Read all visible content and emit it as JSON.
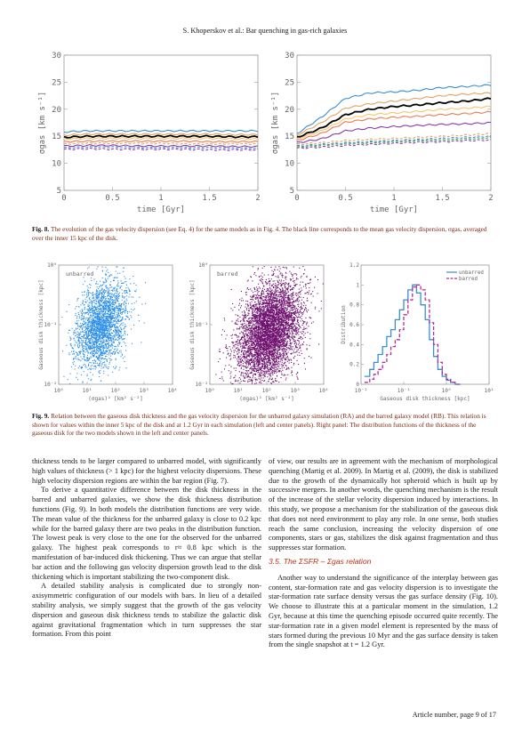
{
  "header": "S. Khoperskov et al.: Bar quenching in gas-rich galaxies",
  "fig8": {
    "caption_label": "Fig. 8.",
    "caption_text": "The evolution of the gas velocity dispersion (see Eq. 4) for the same models as in Fig. 4. The black line corresponds to the mean gas velocity dispersion, σgas, averaged over the inner 15 kpc of the disk.",
    "xlabel": "time [Gyr]",
    "ylabel": "σgas [km s⁻¹]",
    "xticks": [
      "0",
      "0.5",
      "1",
      "1.5",
      "2"
    ],
    "yticks": [
      "5",
      "10",
      "15",
      "20",
      "25",
      "30"
    ]
  },
  "fig9": {
    "caption_label": "Fig. 9.",
    "caption_text": "Relation between the gaseous disk thickness and the gas velocity dispersion for the unbarred galaxy simulation (RA) and the barred galaxy model (RB). This relation is shown for values within the inner 5 kpc of the disk and at 1.2 Gyr in each simulation (left and center panels). Right panel: The distribution functions of the thickness of the gaseous disk for the two models shown in the left and center panels.",
    "panel_left_label": "unbarred",
    "panel_center_label": "barred",
    "scatter_xlabel": "(σgas)² [km² s⁻²]",
    "scatter_ylabel": "Gaseous disk thickness [kpc]",
    "scatter_xticks": [
      "10⁰",
      "10¹",
      "10²",
      "10³",
      "10⁴"
    ],
    "scatter_yticks": [
      "10⁻²",
      "10⁻¹",
      "10⁰"
    ],
    "hist_xlabel": "Gaseous disk thickness [kpc]",
    "hist_ylabel": "Distribution",
    "hist_xticks": [
      "10⁻²",
      "10⁻¹",
      "10⁰",
      "10¹"
    ],
    "hist_yticks": [
      "0",
      "0.2",
      "0.4",
      "0.6",
      "0.8",
      "1",
      "1.2"
    ],
    "legend": [
      "unbarred",
      "barred"
    ]
  },
  "chart_data": [
    {
      "type": "line",
      "xlabel": "time [Gyr]",
      "ylabel": "σgas [km s⁻¹]",
      "xlim": [
        0,
        2
      ],
      "ylim": [
        5,
        30
      ],
      "x": [
        0,
        0.25,
        0.5,
        0.75,
        1,
        1.25,
        1.5,
        1.75,
        2
      ],
      "series": [
        {
          "color": "#3a8fd0",
          "values": [
            15.8,
            16.0,
            16.0,
            16.0,
            16.0,
            16.0,
            16.0,
            16.0,
            16.0
          ]
        },
        {
          "color": "#e8a05a",
          "values": [
            15.2,
            15.4,
            15.4,
            15.4,
            15.4,
            15.4,
            15.4,
            15.3,
            15.3
          ]
        },
        {
          "color": "#000000",
          "values": [
            14.8,
            15.0,
            15.0,
            15.0,
            15.0,
            15.0,
            15.0,
            14.9,
            14.9
          ]
        },
        {
          "color": "#f5c76a",
          "values": [
            14.5,
            14.6,
            14.6,
            14.6,
            14.6,
            14.6,
            14.6,
            14.5,
            14.5
          ]
        },
        {
          "color": "#e87a55",
          "values": [
            14.0,
            14.1,
            14.1,
            14.1,
            14.1,
            14.1,
            14.0,
            14.0,
            14.0
          ]
        },
        {
          "color": "#e8a05a",
          "dash": true,
          "values": [
            13.6,
            13.7,
            13.7,
            13.7,
            13.7,
            13.6,
            13.6,
            13.6,
            13.6
          ]
        },
        {
          "color": "#8a3ab0",
          "values": [
            13.2,
            13.3,
            13.3,
            13.2,
            13.2,
            13.2,
            13.2,
            13.1,
            13.1
          ]
        },
        {
          "color": "#3a8fd0",
          "dash": true,
          "values": [
            12.9,
            13.0,
            13.0,
            12.9,
            12.9,
            12.9,
            12.9,
            12.8,
            12.8
          ]
        },
        {
          "color": "#8a3ab0",
          "dash": true,
          "values": [
            12.6,
            12.7,
            12.6,
            12.6,
            12.6,
            12.6,
            12.5,
            12.5,
            12.5
          ]
        }
      ]
    },
    {
      "type": "line",
      "xlabel": "time [Gyr]",
      "ylabel": "σgas [km s⁻¹]",
      "xlim": [
        0,
        2
      ],
      "ylim": [
        5,
        30
      ],
      "x": [
        0,
        0.25,
        0.5,
        0.75,
        1,
        1.25,
        1.5,
        1.75,
        2
      ],
      "series": [
        {
          "color": "#3a8fd0",
          "values": [
            15.5,
            18.5,
            22.0,
            23.0,
            23.2,
            23.5,
            24.0,
            24.2,
            24.5
          ]
        },
        {
          "color": "#e8a05a",
          "values": [
            15.2,
            17.5,
            20.2,
            21.0,
            21.5,
            22.0,
            22.5,
            22.8,
            23.0
          ]
        },
        {
          "color": "#000000",
          "values": [
            14.8,
            16.5,
            19.0,
            20.0,
            20.5,
            20.8,
            21.2,
            21.5,
            22.0
          ]
        },
        {
          "color": "#f5c76a",
          "values": [
            14.5,
            16.0,
            18.2,
            19.0,
            19.3,
            19.6,
            20.0,
            20.2,
            20.5
          ]
        },
        {
          "color": "#e87a55",
          "values": [
            14.2,
            15.5,
            17.6,
            18.2,
            18.5,
            18.7,
            19.0,
            19.2,
            19.5
          ]
        },
        {
          "color": "#8a3ab0",
          "values": [
            13.8,
            14.5,
            16.0,
            16.5,
            16.8,
            17.0,
            17.2,
            17.3,
            17.5
          ]
        },
        {
          "color": "#e8a05a",
          "dash": true,
          "values": [
            13.5,
            13.8,
            14.2,
            14.4,
            14.6,
            14.8,
            15.0,
            15.2,
            15.5
          ]
        },
        {
          "color": "#3a8fd0",
          "dash": true,
          "values": [
            13.2,
            13.5,
            13.8,
            14.0,
            14.2,
            14.4,
            14.6,
            14.8,
            15.0
          ]
        },
        {
          "color": "#4aa84a",
          "dash": true,
          "values": [
            13.0,
            13.3,
            13.6,
            13.8,
            14.0,
            14.2,
            14.3,
            14.5,
            14.7
          ]
        },
        {
          "color": "#8a3ab0",
          "dash": true,
          "values": [
            12.8,
            13.0,
            13.3,
            13.5,
            13.7,
            13.9,
            14.0,
            14.2,
            14.3
          ]
        }
      ]
    },
    {
      "type": "scatter",
      "xlabel": "(σgas)² [km² s⁻²]",
      "ylabel": "Gaseous disk thickness [kpc]",
      "x_scale": "log",
      "y_scale": "log",
      "xlim": [
        1,
        10000
      ],
      "ylim": [
        0.01,
        1
      ],
      "series": [
        {
          "name": "unbarred",
          "color": "#2a8ee8",
          "center": [
            30,
            0.1
          ],
          "spread": [
            0.45,
            0.35
          ]
        }
      ]
    },
    {
      "type": "scatter",
      "xlabel": "(σgas)² [km² s⁻²]",
      "ylabel": "Gaseous disk thickness [kpc]",
      "x_scale": "log",
      "y_scale": "log",
      "xlim": [
        1,
        10000
      ],
      "ylim": [
        0.01,
        1
      ],
      "series": [
        {
          "name": "barred",
          "color": "#6e0f6e",
          "center": [
            120,
            0.08
          ],
          "spread": [
            0.55,
            0.4
          ]
        }
      ]
    },
    {
      "type": "line",
      "xlabel": "Gaseous disk thickness [kpc]",
      "ylabel": "Distribution",
      "x_scale": "log",
      "xlim": [
        0.01,
        10
      ],
      "ylim": [
        0,
        1.2
      ],
      "x": [
        0.012,
        0.016,
        0.02,
        0.025,
        0.032,
        0.04,
        0.05,
        0.063,
        0.08,
        0.1,
        0.126,
        0.16,
        0.2,
        0.25,
        0.32,
        0.4,
        0.5,
        0.63,
        0.8,
        1.0,
        1.26,
        1.6
      ],
      "series": [
        {
          "name": "unbarred",
          "color": "#3a8fd0",
          "values": [
            0.08,
            0.15,
            0.22,
            0.3,
            0.38,
            0.48,
            0.55,
            0.65,
            0.75,
            0.85,
            0.95,
            1.0,
            0.92,
            0.8,
            0.65,
            0.45,
            0.28,
            0.15,
            0.08,
            0.04,
            0.02,
            0.0
          ]
        },
        {
          "name": "barred",
          "color": "#b0309a",
          "dash": true,
          "values": [
            0.02,
            0.05,
            0.1,
            0.15,
            0.22,
            0.3,
            0.38,
            0.45,
            0.55,
            0.7,
            0.85,
            0.98,
            1.0,
            0.95,
            0.85,
            0.62,
            0.4,
            0.22,
            0.1,
            0.05,
            0.02,
            0.0
          ]
        }
      ]
    }
  ],
  "body_left": [
    "thickness tends to be larger compared to unbarred model, with significantly high values of thickness (> 1 kpc) for the highest velocity dispersions. These high velocity dispersion regions are within the bar region (Fig. 7).",
    "To derive a quantitative difference between the disk thickness in the barred and unbarred galaxies, we show the disk thickness distribution functions (Fig. 9). In both models the distribution functions are very wide. The mean value of the thickness for the unbarred galaxy is close to 0.2 kpc while for the barred galaxy there are two peaks in the distribution function. The lowest peak is very close to the one for the observed for the unbarred galaxy. The highest peak corresponds to r≈ 0.8 kpc which is the manifestation of bar-induced disk thickening. Thus we can argue that stellar bar action and the following gas velocity dispersion growth lead to the disk thickening which is important stabilizing the two-component disk.",
    "A detailed stability analysis is complicated due to strongly non-axisymmetric configuration of our models with bars. In lieu of a detailed stability analysis, we simply suggest that the growth of the gas velocity dispersion and gaseous disk thickness tends to stabilize the galactic disk against gravitational fragmentation which in turn suppresses the star formation. From this point"
  ],
  "body_right": [
    "of view, our results are in agreement with the mechanism of morphological quenching (Martig et al. 2009). In Martig et al. (2009), the disk is stabilized due to the growth of the dynamically hot spheroid which is built up by successive mergers. In another words, the quenching mechanism is the result of the increase of the stellar velocity dispersion induced by interactions. In this study, we propose a mechanism for the stabilization of the gaseous disk that does not need environment to play any role. In one sense, both studies reach the same conclusion, increasing the velocity dispersion of one components, stars or gas, stabilizes the disk against fragmentation and thus suppresses star formation."
  ],
  "section_title": "3.5. The ΣSFR – Σgas relation",
  "body_right2": "Another way to understand the significance of the interplay between gas content, star-formation rate and gas velocity dispersion is to investigate the star-formation rate surface density versus the gas surface density (Fig. 10). We choose to illustrate this at a particular moment in the simulation, 1.2 Gyr, because at this time the quenching episode occurred quite recently. The star-formation rate in a given model element is represented by the mass of stars formed during the previous 10 Myr and the gas surface density is taken from the single snapshot at t = 1.2 Gyr.",
  "footer": "Article number, page 9 of 17"
}
